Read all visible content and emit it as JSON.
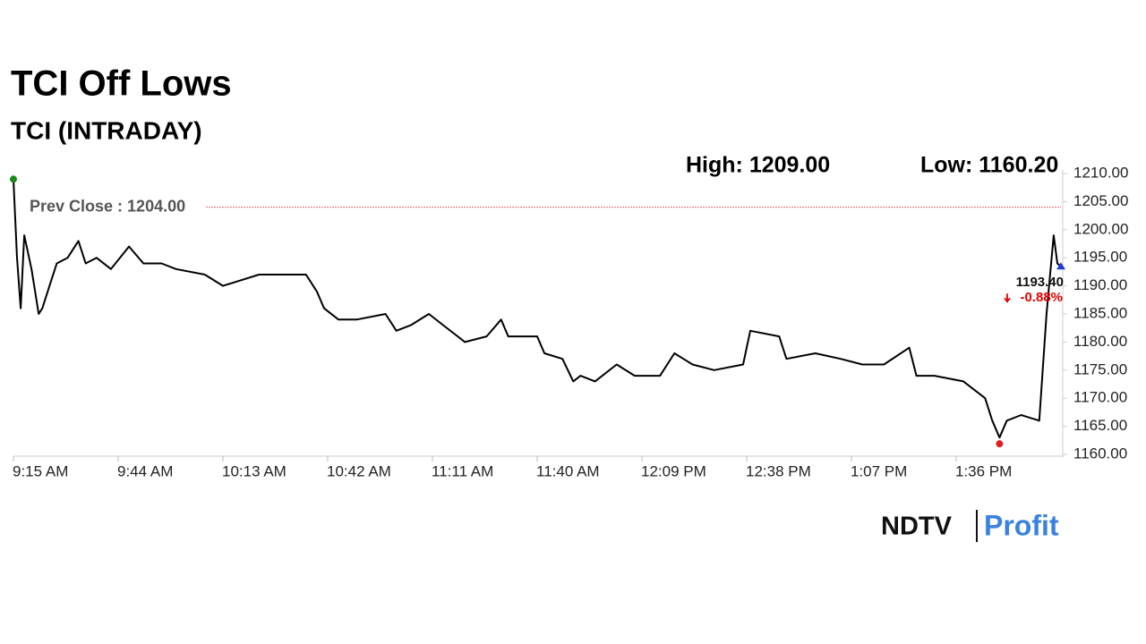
{
  "chart_data": {
    "type": "line",
    "title": "TCI Off Lows",
    "subtitle": "TCI (INTRADAY)",
    "stats": [
      "High: 1209.00",
      "Low: 1160.20"
    ],
    "x": [
      "9:15 AM",
      "9:16 AM",
      "9:17 AM",
      "9:18 AM",
      "9:20 AM",
      "9:22 AM",
      "9:23 AM",
      "9:25 AM",
      "9:27 AM",
      "9:30 AM",
      "9:33 AM",
      "9:35 AM",
      "9:38 AM",
      "9:42 AM",
      "9:47 AM",
      "9:51 AM",
      "9:56 AM",
      "10:00 AM",
      "10:08 AM",
      "10:13 AM",
      "10:18 AM",
      "10:23 AM",
      "10:30 AM",
      "10:36 AM",
      "10:39 AM",
      "10:41 AM",
      "10:45 AM",
      "10:50 AM",
      "10:58 AM",
      "11:01 AM",
      "11:05 AM",
      "11:10 AM",
      "11:14 AM",
      "11:20 AM",
      "11:26 AM",
      "11:30 AM",
      "11:32 AM",
      "11:40 AM",
      "11:42 AM",
      "11:47 AM",
      "11:50 AM",
      "11:52 AM",
      "11:56 AM",
      "12:02 PM",
      "12:07 PM",
      "12:14 PM",
      "12:18 PM",
      "12:23 PM",
      "12:29 PM",
      "12:37 PM",
      "12:39 PM",
      "12:47 PM",
      "12:49 PM",
      "12:57 PM",
      "1:04 PM",
      "1:10 PM",
      "1:16 PM",
      "1:23 PM",
      "1:25 PM",
      "1:30 PM",
      "1:38 PM",
      "1:44 PM",
      "1:46 PM",
      "1:48 PM",
      "1:50 PM",
      "1:54 PM",
      "1:59 PM",
      "2:01 PM",
      "2:02 PM",
      "2:03 PM",
      "2:04 PM",
      "2:05 PM"
    ],
    "series": [
      {
        "name": "TCI",
        "color": "#000000",
        "values": [
          1209,
          1195,
          1186,
          1199,
          1193,
          1185,
          1186,
          1190,
          1194,
          1195,
          1198,
          1194,
          1195,
          1193,
          1197,
          1194,
          1194,
          1193,
          1192,
          1190,
          1191,
          1192,
          1192,
          1192,
          1189,
          1186,
          1184,
          1184,
          1185,
          1182,
          1183,
          1185,
          1183,
          1180,
          1181,
          1184,
          1181,
          1181,
          1178,
          1177,
          1173,
          1174,
          1173,
          1176,
          1174,
          1174,
          1178,
          1176,
          1175,
          1176,
          1182,
          1181,
          1177,
          1178,
          1177,
          1176,
          1176,
          1179,
          1174,
          1174,
          1173,
          1170,
          1166,
          1163,
          1166,
          1167,
          1166,
          1185,
          1192,
          1199,
          1194,
          1193.4
        ]
      }
    ],
    "xlim": [
      "9:15 AM",
      "2:05 PM"
    ],
    "xticks": [
      "9:15 AM",
      "9:44 AM",
      "10:13 AM",
      "10:42 AM",
      "11:11 AM",
      "11:40 AM",
      "12:09 PM",
      "12:38 PM",
      "1:07 PM",
      "1:36 PM"
    ],
    "ylim": [
      1160,
      1210
    ],
    "yticks": [
      {
        "value": 1160,
        "label": "1160.00"
      },
      {
        "value": 1165,
        "label": "1165.00"
      },
      {
        "value": 1170,
        "label": "1170.00"
      },
      {
        "value": 1175,
        "label": "1175.00"
      },
      {
        "value": 1180,
        "label": "1180.00"
      },
      {
        "value": 1185,
        "label": "1185.00"
      },
      {
        "value": 1190,
        "label": "1190.00"
      },
      {
        "value": 1195,
        "label": "1195.00"
      },
      {
        "value": 1200,
        "label": "1200.00"
      },
      {
        "value": 1205,
        "label": "1205.00"
      },
      {
        "value": 1210,
        "label": "1210.00"
      }
    ],
    "reference_line": {
      "value": 1204,
      "label": "Prev Close : 1204.00",
      "color": "#e06666"
    },
    "last_price": {
      "value": 1193.4,
      "label": "1193.40"
    },
    "change": {
      "value": -0.88,
      "label": "-0.88%",
      "color": "#e00000"
    },
    "marker_colors": {
      "high": "#1a8a1a",
      "low": "#e02020",
      "last": "#1f3fcf"
    },
    "logo": {
      "brand": "NDTV",
      "product": "Profit"
    }
  }
}
